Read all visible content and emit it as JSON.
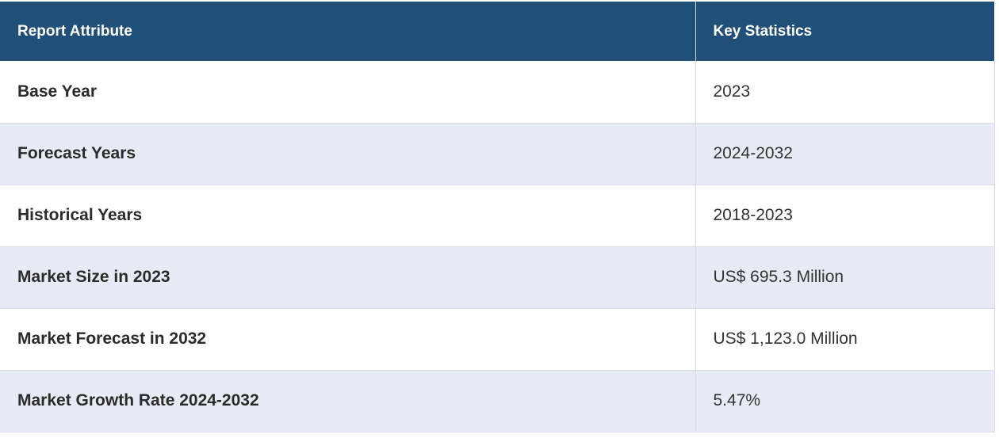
{
  "table": {
    "header": [
      "Report Attribute",
      "Key Statistics"
    ],
    "rows": [
      [
        "Base Year",
        "2023"
      ],
      [
        "Forecast Years",
        "2024-2032"
      ],
      [
        "Historical Years",
        "2018-2023"
      ],
      [
        "Market Size in 2023",
        "US$ 695.3 Million"
      ],
      [
        "Market Forecast in 2032",
        "US$ 1,123.0 Million"
      ],
      [
        "Market Growth Rate 2024-2032",
        "5.47%"
      ]
    ]
  }
}
